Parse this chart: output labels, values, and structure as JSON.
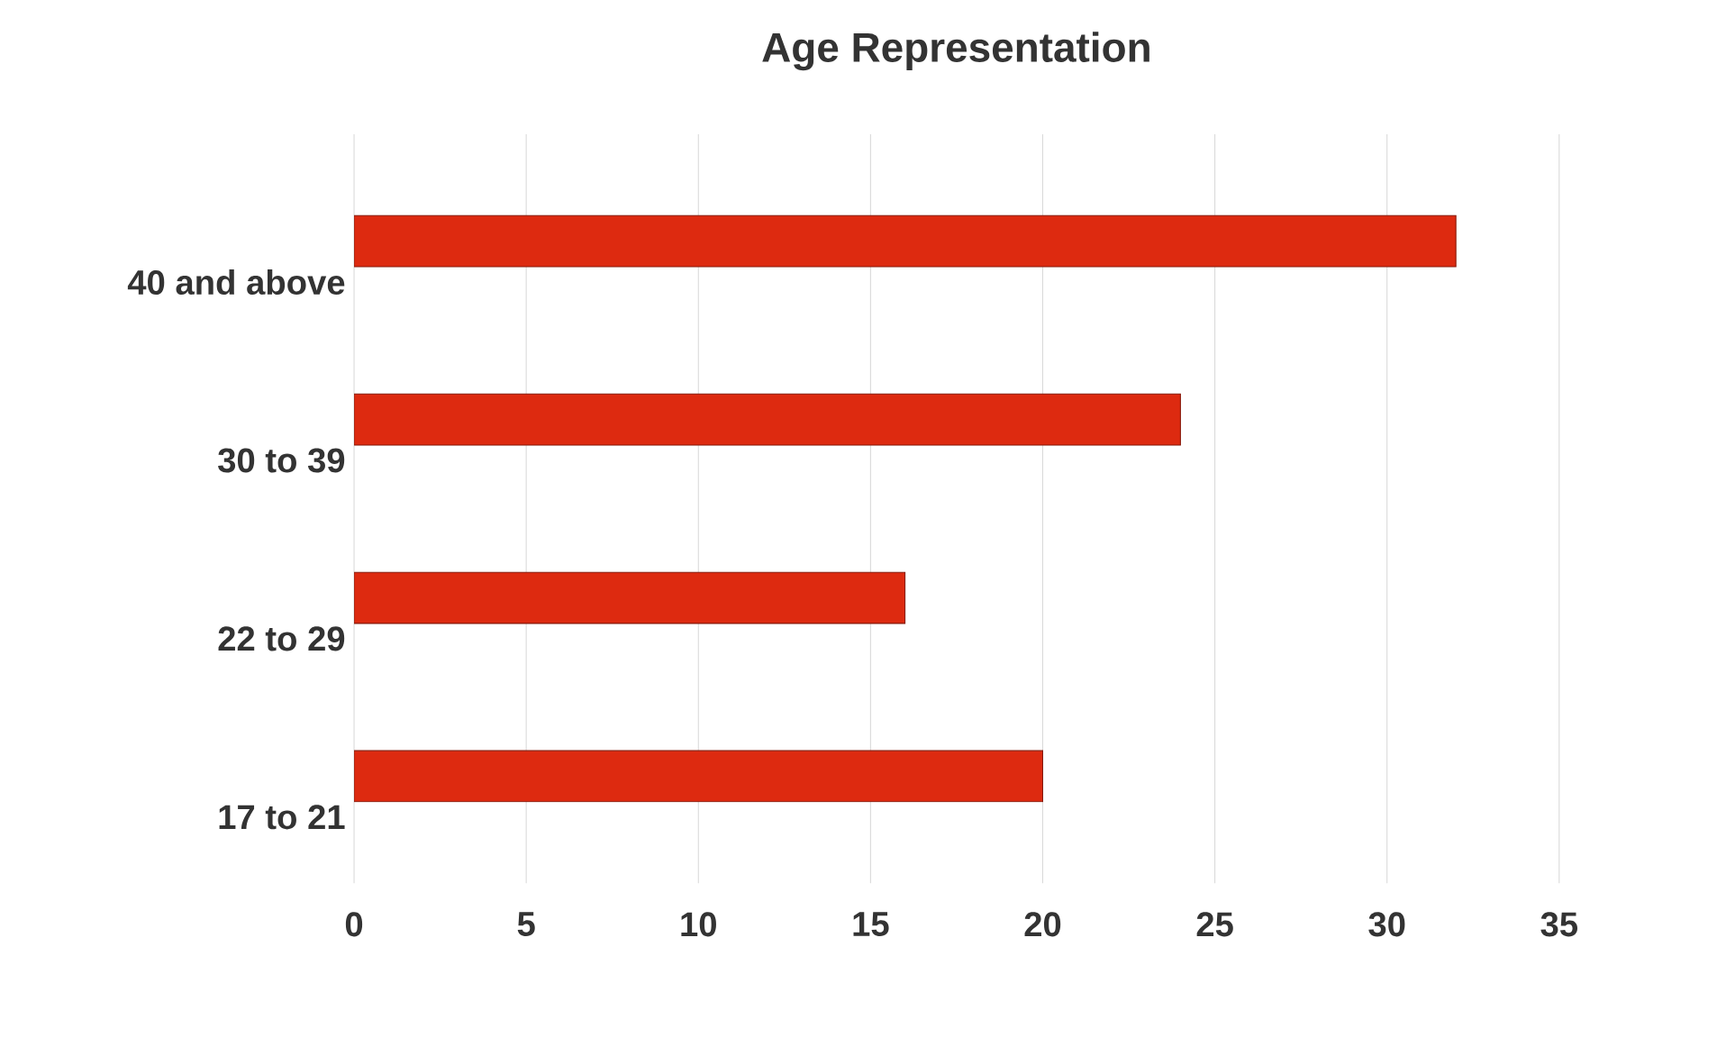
{
  "chart_data": {
    "type": "bar",
    "orientation": "horizontal",
    "title": "Age Representation",
    "categories": [
      "40 and above",
      "30 to 39",
      "22 to 29",
      "17 to 21"
    ],
    "values": [
      32,
      24,
      16,
      20
    ],
    "color": "#dd2a10",
    "xlim": [
      0,
      35
    ],
    "xticks": [
      0,
      5,
      10,
      15,
      20,
      25,
      30,
      35
    ],
    "grid": "x"
  }
}
